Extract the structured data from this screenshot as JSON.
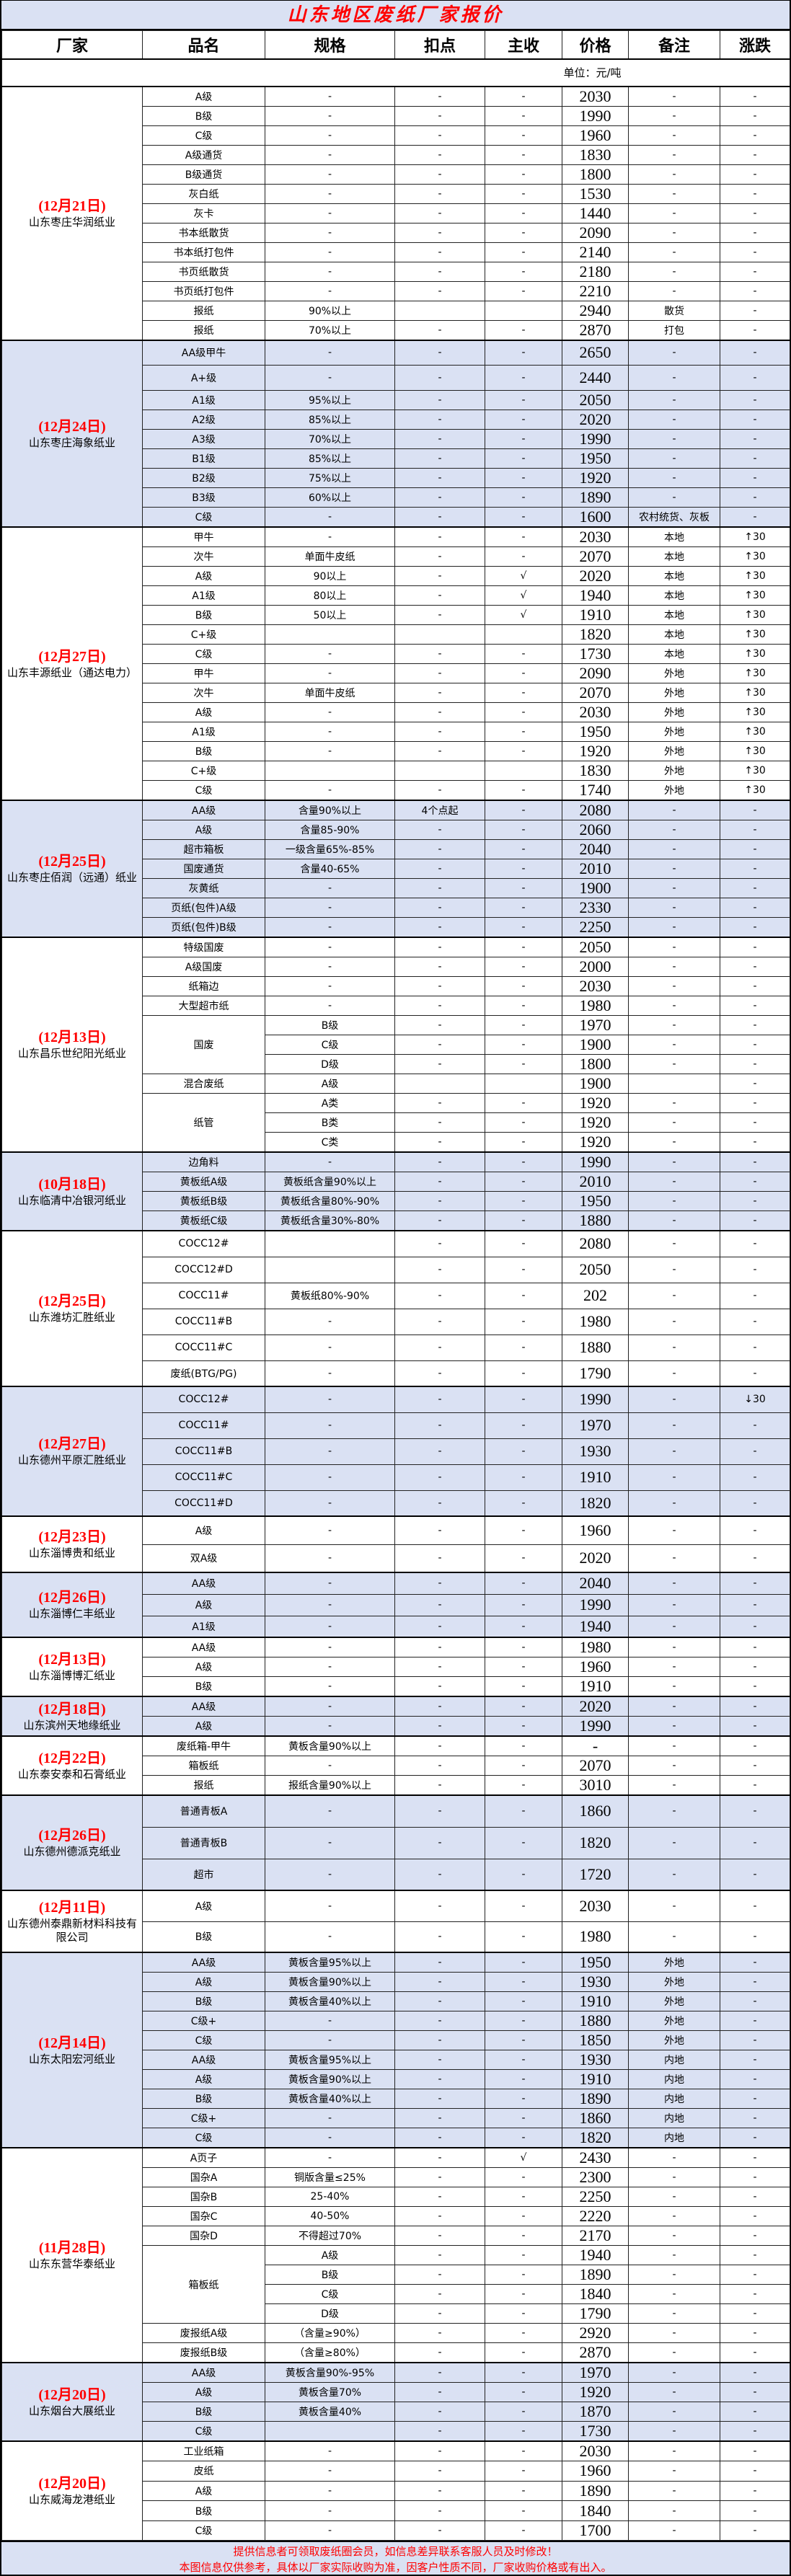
{
  "title": "山东地区废纸厂家报价",
  "headers": [
    "厂家",
    "品名",
    "规格",
    "扣点",
    "主收",
    "价格",
    "备注",
    "涨跌"
  ],
  "unit": "单位：元/吨",
  "colors": {
    "title": "#ff0000",
    "band": "#dae1f3",
    "date": "#ff0000"
  },
  "groups": [
    {
      "date": "(12月21日)",
      "name": "山东枣庄华润纸业",
      "rows": [
        [
          "A级",
          "-",
          "-",
          "-",
          "2030",
          "-",
          "-"
        ],
        [
          "B级",
          "-",
          "-",
          "-",
          "1990",
          "-",
          "-"
        ],
        [
          "C级",
          "-",
          "-",
          "-",
          "1960",
          "-",
          "-"
        ],
        [
          "A级通货",
          "-",
          "-",
          "-",
          "1830",
          "-",
          "-"
        ],
        [
          "B级通货",
          "-",
          "-",
          "-",
          "1800",
          "-",
          "-"
        ],
        [
          "灰白纸",
          "-",
          "-",
          "-",
          "1530",
          "-",
          "-"
        ],
        [
          "灰卡",
          "-",
          "-",
          "-",
          "1440",
          "-",
          "-"
        ],
        [
          "书本纸散货",
          "-",
          "-",
          "-",
          "2090",
          "-",
          "-"
        ],
        [
          "书本纸打包件",
          "-",
          "-",
          "-",
          "2140",
          "-",
          "-"
        ],
        [
          "书页纸散货",
          "-",
          "-",
          "-",
          "2180",
          "-",
          "-"
        ],
        [
          "书页纸打包件",
          "-",
          "-",
          "-",
          "2210",
          "-",
          "-"
        ],
        [
          "报纸",
          "90%以上",
          "",
          "",
          "2940",
          "散货",
          "-"
        ],
        [
          "报纸",
          "70%以上",
          "-",
          "-",
          "2870",
          "打包",
          "-"
        ]
      ]
    },
    {
      "date": "(12月24日)",
      "name": "山东枣庄海象纸业",
      "rows": [
        [
          "AA级甲牛",
          "-",
          "-",
          "-",
          "2650",
          "-",
          "-"
        ],
        [
          "A+级",
          "-",
          "-",
          "-",
          "2440",
          "-",
          "-"
        ],
        [
          "A1级",
          "95%以上",
          "-",
          "-",
          "2050",
          "-",
          "-"
        ],
        [
          "A2级",
          "85%以上",
          "-",
          "-",
          "2020",
          "-",
          "-"
        ],
        [
          "A3级",
          "70%以上",
          "-",
          "-",
          "1990",
          "-",
          "-"
        ],
        [
          "B1级",
          "85%以上",
          "-",
          "-",
          "1950",
          "-",
          "-"
        ],
        [
          "B2级",
          "75%以上",
          "-",
          "-",
          "1920",
          "-",
          "-"
        ],
        [
          "B3级",
          "60%以上",
          "-",
          "-",
          "1890",
          "-",
          "-"
        ],
        [
          "C级",
          "-",
          "-",
          "-",
          "1600",
          "农村统货、灰板",
          "-"
        ]
      ]
    },
    {
      "date": "(12月27日)",
      "name": "山东丰源纸业（通达电力）",
      "rows": [
        [
          "甲牛",
          "-",
          "-",
          "-",
          "2030",
          "本地",
          "↑30"
        ],
        [
          "次牛",
          "单面牛皮纸",
          "-",
          "-",
          "2070",
          "本地",
          "↑30"
        ],
        [
          "A级",
          "90以上",
          "-",
          "√",
          "2020",
          "本地",
          "↑30"
        ],
        [
          "A1级",
          "80以上",
          "-",
          "√",
          "1940",
          "本地",
          "↑30"
        ],
        [
          "B级",
          "50以上",
          "-",
          "√",
          "1910",
          "本地",
          "↑30"
        ],
        [
          "C+级",
          "",
          "",
          "",
          "1820",
          "本地",
          "↑30"
        ],
        [
          "C级",
          "-",
          "-",
          "-",
          "1730",
          "本地",
          "↑30"
        ],
        [
          "甲牛",
          "-",
          "-",
          "-",
          "2090",
          "外地",
          "↑30"
        ],
        [
          "次牛",
          "单面牛皮纸",
          "-",
          "-",
          "2070",
          "外地",
          "↑30"
        ],
        [
          "A级",
          "-",
          "-",
          "-",
          "2030",
          "外地",
          "↑30"
        ],
        [
          "A1级",
          "-",
          "-",
          "-",
          "1950",
          "外地",
          "↑30"
        ],
        [
          "B级",
          "-",
          "-",
          "-",
          "1920",
          "外地",
          "↑30"
        ],
        [
          "C+级",
          "",
          "",
          "",
          "1830",
          "外地",
          "↑30"
        ],
        [
          "C级",
          "-",
          "-",
          "-",
          "1740",
          "外地",
          "↑30"
        ]
      ]
    },
    {
      "date": "(12月25日)",
      "name": "山东枣庄佰润（远通）纸业",
      "rows": [
        [
          "AA级",
          "含量90%以上",
          "4个点起",
          "-",
          "2080",
          "-",
          "-"
        ],
        [
          "A级",
          "含量85-90%",
          "-",
          "-",
          "2060",
          "-",
          "-"
        ],
        [
          "超市箱板",
          "一级含量65%-85%",
          "-",
          "-",
          "2040",
          "-",
          "-"
        ],
        [
          "国废通货",
          "含量40-65%",
          "-",
          "-",
          "2010",
          "-",
          "-"
        ],
        [
          "灰黄纸",
          "-",
          "-",
          "-",
          "1900",
          "-",
          "-"
        ],
        [
          "页纸(包件)A级",
          "-",
          "-",
          "-",
          "2330",
          "-",
          "-"
        ],
        [
          "页纸(包件)B级",
          "-",
          "-",
          "-",
          "2250",
          "-",
          "-"
        ]
      ]
    },
    {
      "date": "(12月13日)",
      "name": "山东昌乐世纪阳光纸业",
      "rows": [
        [
          "特级国废",
          "-",
          "-",
          "-",
          "2050",
          "-",
          "-"
        ],
        [
          "A级国废",
          "-",
          "-",
          "-",
          "2000",
          "-",
          "-"
        ],
        [
          "纸箱边",
          "-",
          "-",
          "-",
          "2030",
          "-",
          "-"
        ],
        [
          "大型超市纸",
          "-",
          "-",
          "-",
          "1980",
          "-",
          "-"
        ],
        [
          "国废",
          "B级",
          "-",
          "-",
          "1970",
          "-",
          "-"
        ],
        [
          null,
          "C级",
          "-",
          "-",
          "1900",
          "-",
          "-"
        ],
        [
          null,
          "D级",
          "-",
          "-",
          "1800",
          "-",
          "-"
        ],
        [
          "混合废纸",
          "A级",
          "",
          "",
          "1900",
          "",
          "-"
        ],
        [
          "纸管",
          "A类",
          "-",
          "-",
          "1920",
          "-",
          "-"
        ],
        [
          null,
          "B类",
          "-",
          "-",
          "1920",
          "-",
          "-"
        ],
        [
          null,
          "C类",
          "-",
          "-",
          "1920",
          "-",
          "-"
        ]
      ]
    },
    {
      "date": "(10月18日)",
      "name": "山东临清中冶银河纸业",
      "rows": [
        [
          "边角料",
          "-",
          "-",
          "-",
          "1990",
          "-",
          "-"
        ],
        [
          "黄板纸A级",
          "黄板纸含量90%以上",
          "-",
          "-",
          "2010",
          "-",
          "-"
        ],
        [
          "黄板纸B级",
          "黄板纸含量80%-90%",
          "-",
          "-",
          "1950",
          "-",
          "-"
        ],
        [
          "黄板纸C级",
          "黄板纸含量30%-80%",
          "-",
          "-",
          "1880",
          "-",
          "-"
        ]
      ]
    },
    {
      "date": "(12月25日)",
      "name": "山东潍坊汇胜纸业",
      "rows": [
        [
          "COCC12#",
          "",
          "-",
          "-",
          "2080",
          "-",
          "-"
        ],
        [
          "COCC12#D",
          "",
          "-",
          "-",
          "2050",
          "-",
          "-"
        ],
        [
          "COCC11#",
          "黄板纸80%-90%",
          "-",
          "-",
          "202",
          "-",
          "-"
        ],
        [
          "COCC11#B",
          "-",
          "-",
          "-",
          "1980",
          "-",
          "-"
        ],
        [
          "COCC11#C",
          "-",
          "-",
          "-",
          "1880",
          "-",
          "-"
        ],
        [
          "废纸(BTG/PG)",
          "-",
          "-",
          "-",
          "1790",
          "-",
          "-"
        ]
      ]
    },
    {
      "date": "(12月27日)",
      "name": "山东德州平原汇胜纸业",
      "rows": [
        [
          "COCC12#",
          "-",
          "-",
          "-",
          "1990",
          "-",
          "↓30"
        ],
        [
          "COCC11#",
          "-",
          "-",
          "-",
          "1970",
          "-",
          "-"
        ],
        [
          "COCC11#B",
          "-",
          "-",
          "-",
          "1930",
          "-",
          "-"
        ],
        [
          "COCC11#C",
          "-",
          "-",
          "-",
          "1910",
          "-",
          "-"
        ],
        [
          "COCC11#D",
          "-",
          "-",
          "-",
          "1820",
          "-",
          "-"
        ]
      ]
    },
    {
      "date": "(12月23日)",
      "name": "山东淄博贵和纸业",
      "rows": [
        [
          "A级",
          "-",
          "-",
          "-",
          "1960",
          "-",
          "-"
        ],
        [
          "双A级",
          "-",
          "-",
          "-",
          "2020",
          "-",
          "-"
        ]
      ]
    },
    {
      "date": "(12月26日)",
      "name": "山东淄博仁丰纸业",
      "rows": [
        [
          "AA级",
          "-",
          "-",
          "-",
          "2040",
          "-",
          "-"
        ],
        [
          "A级",
          "-",
          "-",
          "-",
          "1990",
          "-",
          "-"
        ],
        [
          "A1级",
          "-",
          "-",
          "-",
          "1940",
          "-",
          "-"
        ]
      ]
    },
    {
      "date": "(12月13日)",
      "name": "山东淄博博汇纸业",
      "rows": [
        [
          "AA级",
          "-",
          "-",
          "-",
          "1980",
          "-",
          "-"
        ],
        [
          "A级",
          "-",
          "-",
          "-",
          "1960",
          "-",
          "-"
        ],
        [
          "B级",
          "-",
          "-",
          "-",
          "1910",
          "-",
          "-"
        ]
      ]
    },
    {
      "date": "(12月18日)",
      "name": "山东滨州天地缘纸业",
      "rows": [
        [
          "AA级",
          "-",
          "-",
          "-",
          "2020",
          "-",
          "-"
        ],
        [
          "A级",
          "-",
          "-",
          "-",
          "1990",
          "-",
          "-"
        ]
      ]
    },
    {
      "date": "(12月22日)",
      "name": "山东泰安泰和石膏纸业",
      "rows": [
        [
          "废纸箱-甲牛",
          "黄板含量90%以上",
          "-",
          "-",
          "-",
          "-",
          "-"
        ],
        [
          "箱板纸",
          "-",
          "-",
          "-",
          "2070",
          "-",
          "-"
        ],
        [
          "报纸",
          "报纸含量90%以上",
          "-",
          "-",
          "3010",
          "-",
          "-"
        ]
      ]
    },
    {
      "date": "(12月26日)",
      "name": "山东德州德派克纸业",
      "rows": [
        [
          "普通青板A",
          "-",
          "-",
          "-",
          "1860",
          "-",
          "-"
        ],
        [
          "普通青板B",
          "-",
          "-",
          "-",
          "1820",
          "-",
          "-"
        ],
        [
          "超市",
          "-",
          "-",
          "-",
          "1720",
          "-",
          "-"
        ]
      ]
    },
    {
      "date": "(12月11日)",
      "name": "山东德州泰鼎新材料科技有限公司",
      "rows": [
        [
          "A级",
          "-",
          "-",
          "-",
          "2030",
          "-",
          "-"
        ],
        [
          "B级",
          "-",
          "-",
          "-",
          "1980",
          "-",
          "-"
        ]
      ]
    },
    {
      "date": "(12月14日)",
      "name": "山东太阳宏河纸业",
      "rows": [
        [
          "AA级",
          "黄板含量95%以上",
          "-",
          "-",
          "1950",
          "外地",
          "-"
        ],
        [
          "A级",
          "黄板含量90%以上",
          "-",
          "-",
          "1930",
          "外地",
          "-"
        ],
        [
          "B级",
          "黄板含量40%以上",
          "-",
          "-",
          "1910",
          "外地",
          "-"
        ],
        [
          "C级+",
          "-",
          "-",
          "-",
          "1880",
          "外地",
          "-"
        ],
        [
          "C级",
          "-",
          "-",
          "-",
          "1850",
          "外地",
          "-"
        ],
        [
          "AA级",
          "黄板含量95%以上",
          "-",
          "-",
          "1930",
          "内地",
          "-"
        ],
        [
          "A级",
          "黄板含量90%以上",
          "-",
          "-",
          "1910",
          "内地",
          "-"
        ],
        [
          "B级",
          "黄板含量40%以上",
          "-",
          "-",
          "1890",
          "内地",
          "-"
        ],
        [
          "C级+",
          "-",
          "-",
          "-",
          "1860",
          "内地",
          "-"
        ],
        [
          "C级",
          "-",
          "-",
          "-",
          "1820",
          "内地",
          "-"
        ]
      ]
    },
    {
      "date": "(11月28日)",
      "name": "山东东营华泰纸业",
      "rows": [
        [
          "A页子",
          "-",
          "-",
          "√",
          "2430",
          "-",
          "-"
        ],
        [
          "国杂A",
          "铜版含量≤25%",
          "-",
          "-",
          "2300",
          "-",
          "-"
        ],
        [
          "国杂B",
          "25-40%",
          "-",
          "-",
          "2250",
          "-",
          "-"
        ],
        [
          "国杂C",
          "40-50%",
          "-",
          "-",
          "2220",
          "-",
          "-"
        ],
        [
          "国杂D",
          "不得超过70%",
          "-",
          "-",
          "2170",
          "-",
          "-"
        ],
        [
          "箱板纸",
          "A级",
          "-",
          "-",
          "1940",
          "-",
          "-"
        ],
        [
          null,
          "B级",
          "-",
          "-",
          "1890",
          "-",
          "-"
        ],
        [
          null,
          "C级",
          "-",
          "-",
          "1840",
          "-",
          "-"
        ],
        [
          null,
          "D级",
          "-",
          "-",
          "1790",
          "-",
          "-"
        ],
        [
          "废报纸A级",
          "（含量≥90%）",
          "-",
          "-",
          "2920",
          "-",
          "-"
        ],
        [
          "废报纸B级",
          "（含量≥80%）",
          "-",
          "-",
          "2870",
          "-",
          "-"
        ]
      ]
    },
    {
      "date": "(12月20日)",
      "name": "山东烟台大展纸业",
      "rows": [
        [
          "AA级",
          "黄板含量90%-95%",
          "-",
          "-",
          "1970",
          "-",
          "-"
        ],
        [
          "A级",
          "黄板含量70%",
          "-",
          "-",
          "1920",
          "-",
          "-"
        ],
        [
          "B级",
          "黄板含量40%",
          "-",
          "-",
          "1870",
          "-",
          "-"
        ],
        [
          "C级",
          "",
          "-",
          "-",
          "1730",
          "-",
          "-"
        ]
      ]
    },
    {
      "date": "(12月20日)",
      "name": "山东威海龙港纸业",
      "rows": [
        [
          "工业纸箱",
          "-",
          "-",
          "-",
          "2030",
          "-",
          "-"
        ],
        [
          "皮纸",
          "-",
          "-",
          "-",
          "1960",
          "-",
          "-"
        ],
        [
          "A级",
          "-",
          "-",
          "-",
          "1890",
          "-",
          "-"
        ],
        [
          "B级",
          "-",
          "-",
          "-",
          "1840",
          "-",
          "-"
        ],
        [
          "C级",
          "-",
          "-",
          "-",
          "1700",
          "-",
          "-"
        ]
      ]
    }
  ],
  "footer": [
    "提供信息者可领取废纸圈会员，如信息差异联系客服人员及时修改！",
    "本图信息仅供参考，具体以厂家实际收购为准，因客户性质不同，厂家收购价格或有出入。"
  ]
}
